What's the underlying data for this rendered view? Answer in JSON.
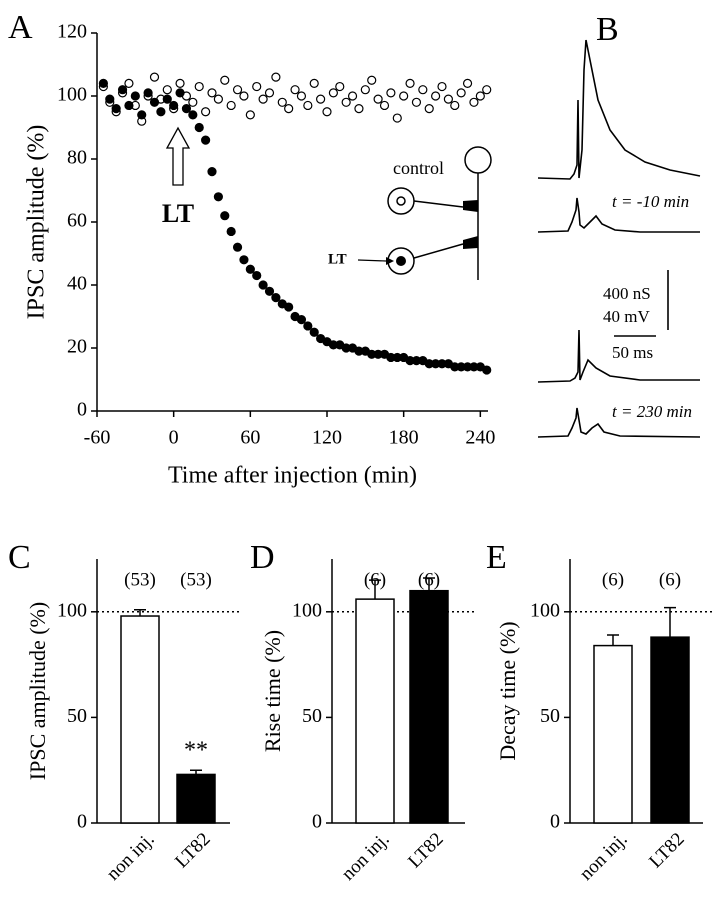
{
  "chart_data": [
    {
      "type": "scatter",
      "panel_label": "A",
      "y_label": "IPSC amplitude (%)",
      "x_label": "Time after injection (min)",
      "xlim": [
        -60,
        246
      ],
      "xticks": [
        -60,
        0,
        60,
        120,
        180,
        240
      ],
      "ylim": [
        0,
        120
      ],
      "yticks": [
        0,
        20,
        40,
        60,
        80,
        100,
        120
      ],
      "x": [
        -55,
        -50,
        -45,
        -40,
        -35,
        -30,
        -25,
        -20,
        -15,
        -10,
        -5,
        0,
        5,
        10,
        15,
        20,
        25,
        30,
        35,
        40,
        45,
        50,
        55,
        60,
        65,
        70,
        75,
        80,
        85,
        90,
        95,
        100,
        105,
        110,
        115,
        120,
        125,
        130,
        135,
        140,
        145,
        150,
        155,
        160,
        165,
        170,
        175,
        180,
        185,
        190,
        195,
        200,
        205,
        210,
        215,
        220,
        225,
        230,
        235,
        240,
        245
      ],
      "series": [
        {
          "name": "control",
          "color": "#000000",
          "marker_fill": "#ffffff",
          "values": [
            103,
            98,
            95,
            101,
            104,
            97,
            92,
            100,
            106,
            99,
            102,
            96,
            104,
            100,
            98,
            103,
            95,
            101,
            99,
            105,
            97,
            102,
            100,
            94,
            103,
            99,
            101,
            106,
            98,
            96,
            102,
            100,
            97,
            104,
            99,
            95,
            101,
            103,
            98,
            100,
            96,
            102,
            105,
            99,
            97,
            101,
            93,
            100,
            104,
            98,
            102,
            96,
            100,
            103,
            99,
            97,
            101,
            104,
            98,
            100,
            102
          ]
        },
        {
          "name": "LT",
          "color": "#000000",
          "marker_fill": "#000000",
          "values": [
            104,
            99,
            96,
            102,
            97,
            100,
            94,
            101,
            98,
            95,
            99,
            97,
            101,
            96,
            94,
            90,
            86,
            76,
            68,
            62,
            57,
            52,
            48,
            45,
            43,
            40,
            38,
            36,
            34,
            33,
            30,
            29,
            27,
            25,
            23,
            22,
            21,
            21,
            20,
            20,
            19,
            19,
            18,
            18,
            18,
            17,
            17,
            17,
            16,
            16,
            16,
            15,
            15,
            15,
            15,
            14,
            14,
            14,
            14,
            14,
            13
          ]
        }
      ],
      "arrow_label": "LT"
    },
    {
      "type": "bar",
      "panel_label": "C",
      "y_label": "IPSC amplitude (%)",
      "categories": [
        "non inj.",
        "LT82"
      ],
      "values": [
        98,
        23
      ],
      "errors": [
        3,
        2
      ],
      "colors": [
        "#ffffff",
        "#000000"
      ],
      "n_labels": [
        "(53)",
        "(53)"
      ],
      "significance_labels": [
        null,
        "**"
      ],
      "ylim": [
        0,
        125
      ],
      "yticks": [
        0,
        50,
        100
      ],
      "reference_line": 100
    },
    {
      "type": "bar",
      "panel_label": "D",
      "y_label": "Rise time (%)",
      "categories": [
        "non inj.",
        "LT82"
      ],
      "values": [
        106,
        110
      ],
      "errors": [
        9,
        6
      ],
      "colors": [
        "#ffffff",
        "#000000"
      ],
      "n_labels": [
        "(6)",
        "(6)"
      ],
      "ylim": [
        0,
        125
      ],
      "yticks": [
        0,
        50,
        100
      ],
      "reference_line": 100
    },
    {
      "type": "bar",
      "panel_label": "E",
      "y_label": "Decay time (%)",
      "categories": [
        "non inj.",
        "LT82"
      ],
      "values": [
        84,
        88
      ],
      "errors": [
        5,
        14
      ],
      "colors": [
        "#ffffff",
        "#000000"
      ],
      "n_labels": [
        "(6)",
        "(6)"
      ],
      "ylim": [
        0,
        125
      ],
      "yticks": [
        0,
        50,
        100
      ],
      "reference_line": 100
    }
  ],
  "panel_b": {
    "panel_label": "B",
    "trace_labels": [
      "t = -10 min",
      "t = 230 min"
    ],
    "scale_bar_labels": [
      "400 nS",
      "40 mV",
      "50 ms"
    ]
  }
}
